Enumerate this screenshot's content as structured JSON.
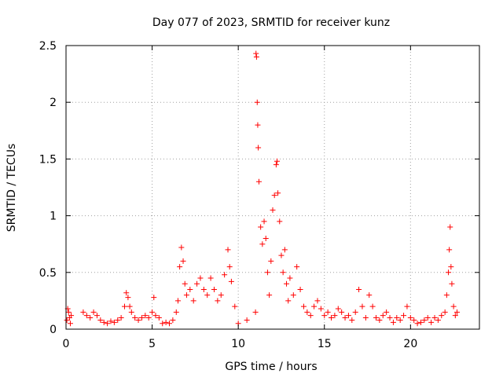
{
  "chart_data": {
    "type": "scatter",
    "title": "Day 077 of 2023, SRMTID for receiver kunz",
    "xlabel": "GPS time / hours",
    "ylabel": "SRMTID / TECUs",
    "xlim": [
      0,
      24
    ],
    "ylim": [
      0,
      2.5
    ],
    "x_ticks": [
      0,
      5,
      10,
      15,
      20
    ],
    "x_tick_labels": [
      "0",
      "5",
      "10",
      "15",
      "20"
    ],
    "y_ticks": [
      0,
      0.5,
      1,
      1.5,
      2,
      2.5
    ],
    "y_tick_labels": [
      "0",
      "0.5",
      "1",
      "1.5",
      "2",
      "2.5"
    ],
    "grid": true,
    "marker": "+",
    "series": [
      {
        "name": "SRMTID",
        "color": "#ff0000",
        "x": [
          0.05,
          0.1,
          0.15,
          0.2,
          0.25,
          0.3,
          1.0,
          1.2,
          1.4,
          1.6,
          1.8,
          2.0,
          2.2,
          2.4,
          2.6,
          2.8,
          3.0,
          3.2,
          3.4,
          3.5,
          3.6,
          3.7,
          3.8,
          4.0,
          4.2,
          4.4,
          4.6,
          4.8,
          5.0,
          5.1,
          5.2,
          5.4,
          5.6,
          5.8,
          6.0,
          6.2,
          6.4,
          6.5,
          6.6,
          6.7,
          6.8,
          6.9,
          7.0,
          7.2,
          7.4,
          7.6,
          7.8,
          8.0,
          8.2,
          8.4,
          8.6,
          8.8,
          9.0,
          9.2,
          9.4,
          9.5,
          9.6,
          9.8,
          10.0,
          10.5,
          11.0,
          11.03,
          11.06,
          11.1,
          11.13,
          11.16,
          11.2,
          11.3,
          11.4,
          11.5,
          11.6,
          11.7,
          11.8,
          11.9,
          12.0,
          12.1,
          12.2,
          12.25,
          12.3,
          12.4,
          12.5,
          12.6,
          12.7,
          12.8,
          12.9,
          13.0,
          13.2,
          13.4,
          13.6,
          13.8,
          14.0,
          14.2,
          14.4,
          14.6,
          14.8,
          15.0,
          15.2,
          15.4,
          15.6,
          15.8,
          16.0,
          16.2,
          16.4,
          16.6,
          16.8,
          17.0,
          17.2,
          17.4,
          17.6,
          17.8,
          18.0,
          18.2,
          18.4,
          18.6,
          18.8,
          19.0,
          19.2,
          19.4,
          19.6,
          19.8,
          20.0,
          20.2,
          20.4,
          20.6,
          20.8,
          21.0,
          21.2,
          21.4,
          21.6,
          21.8,
          22.0,
          22.1,
          22.2,
          22.25,
          22.3,
          22.35,
          22.4,
          22.5,
          22.6,
          22.7
        ],
        "y": [
          0.08,
          0.18,
          0.15,
          0.1,
          0.05,
          0.12,
          0.15,
          0.12,
          0.1,
          0.15,
          0.12,
          0.08,
          0.06,
          0.05,
          0.07,
          0.06,
          0.08,
          0.1,
          0.2,
          0.32,
          0.28,
          0.2,
          0.15,
          0.1,
          0.08,
          0.1,
          0.12,
          0.1,
          0.15,
          0.28,
          0.12,
          0.1,
          0.05,
          0.06,
          0.05,
          0.08,
          0.15,
          0.25,
          0.55,
          0.72,
          0.6,
          0.4,
          0.3,
          0.35,
          0.25,
          0.4,
          0.45,
          0.35,
          0.3,
          0.45,
          0.35,
          0.25,
          0.3,
          0.48,
          0.7,
          0.55,
          0.42,
          0.2,
          0.05,
          0.08,
          0.15,
          2.43,
          2.4,
          2.0,
          1.8,
          1.6,
          1.3,
          0.9,
          0.75,
          0.95,
          0.8,
          0.5,
          0.3,
          0.6,
          1.05,
          1.18,
          1.45,
          1.48,
          1.2,
          0.95,
          0.65,
          0.5,
          0.7,
          0.4,
          0.25,
          0.45,
          0.3,
          0.55,
          0.35,
          0.2,
          0.15,
          0.12,
          0.2,
          0.25,
          0.18,
          0.12,
          0.15,
          0.1,
          0.12,
          0.18,
          0.15,
          0.1,
          0.12,
          0.08,
          0.15,
          0.35,
          0.2,
          0.1,
          0.3,
          0.2,
          0.1,
          0.08,
          0.12,
          0.15,
          0.1,
          0.06,
          0.1,
          0.08,
          0.12,
          0.2,
          0.1,
          0.08,
          0.05,
          0.06,
          0.08,
          0.1,
          0.06,
          0.1,
          0.08,
          0.12,
          0.15,
          0.3,
          0.5,
          0.7,
          0.9,
          0.55,
          0.4,
          0.2,
          0.12,
          0.15
        ]
      }
    ]
  }
}
